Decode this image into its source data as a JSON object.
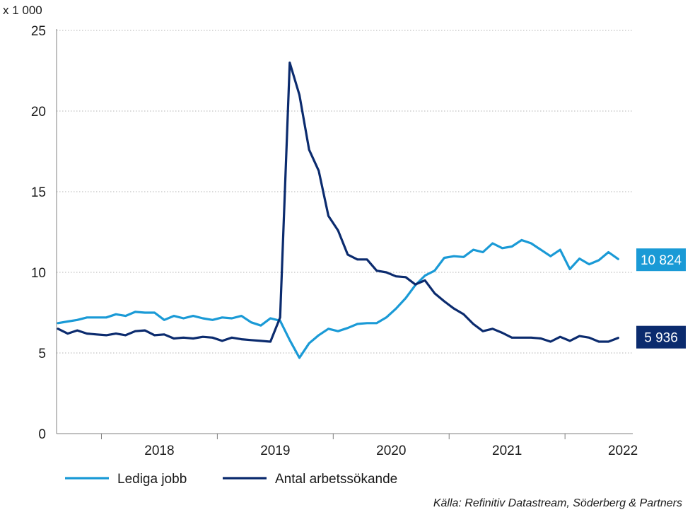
{
  "chart_data": {
    "type": "line",
    "unit_label": "x 1 000",
    "y_ticks": [
      "0",
      "5",
      "10",
      "15",
      "20",
      "25"
    ],
    "ylim": [
      0,
      25
    ],
    "x_start": "2017-08",
    "year_labels": [
      "2018",
      "2019",
      "2020",
      "2021",
      "2022"
    ],
    "grid": "horizontal dotted",
    "legend_position": "bottom-left",
    "source": "Källa: Refinitiv Datastream, Söderberg & Partners",
    "series": [
      {
        "name": "Lediga jobb",
        "color": "#1a9ad6",
        "end_label": "10 824",
        "values": [
          6.85,
          6.95,
          7.05,
          7.2,
          7.2,
          7.2,
          7.4,
          7.3,
          7.55,
          7.5,
          7.5,
          7.05,
          7.3,
          7.15,
          7.3,
          7.15,
          7.05,
          7.2,
          7.15,
          7.3,
          6.9,
          6.7,
          7.15,
          7.0,
          5.8,
          4.7,
          5.6,
          6.1,
          6.5,
          6.35,
          6.55,
          6.8,
          6.85,
          6.85,
          7.2,
          7.75,
          8.4,
          9.2,
          9.8,
          10.1,
          10.9,
          11.0,
          10.95,
          11.4,
          11.25,
          11.8,
          11.5,
          11.6,
          12.0,
          11.8,
          11.4,
          11.0,
          11.4,
          10.2,
          10.85,
          10.5,
          10.75,
          11.25,
          10.824
        ]
      },
      {
        "name": "Antal arbetssökande",
        "color": "#0b2b6e",
        "end_label": "5 936",
        "values": [
          6.5,
          6.2,
          6.4,
          6.2,
          6.15,
          6.1,
          6.2,
          6.1,
          6.35,
          6.4,
          6.1,
          6.15,
          5.9,
          5.95,
          5.9,
          6.0,
          5.95,
          5.75,
          5.95,
          5.85,
          5.8,
          5.75,
          5.7,
          7.2,
          23.0,
          21.0,
          17.6,
          16.3,
          13.5,
          12.6,
          11.1,
          10.8,
          10.8,
          10.1,
          10.0,
          9.75,
          9.7,
          9.25,
          9.5,
          8.7,
          8.2,
          7.75,
          7.4,
          6.8,
          6.35,
          6.5,
          6.25,
          5.95,
          5.95,
          5.95,
          5.9,
          5.7,
          6.0,
          5.75,
          6.05,
          5.95,
          5.7,
          5.7,
          5.936
        ]
      }
    ]
  }
}
